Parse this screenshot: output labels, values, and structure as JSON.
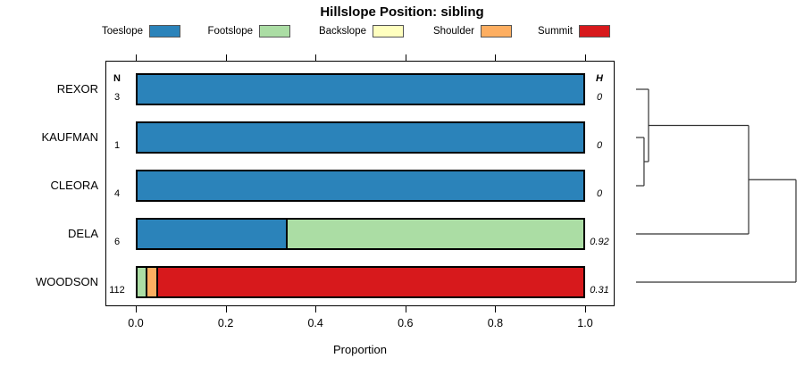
{
  "title": "Hillslope Position: sibling",
  "xlabel": "Proportion",
  "columns": {
    "n_header": "N",
    "h_header": "H"
  },
  "chart_data": {
    "type": "bar",
    "orientation": "horizontal",
    "stacked": true,
    "title": "Hillslope Position: sibling",
    "xlabel": "Proportion",
    "xlim": [
      0,
      1
    ],
    "x_ticks": [
      0.0,
      0.2,
      0.4,
      0.6,
      0.8,
      1.0
    ],
    "axis_mirrored_top_ticks": true,
    "categories": [
      "Toeslope",
      "Footslope",
      "Backslope",
      "Shoulder",
      "Summit"
    ],
    "palette": [
      "#2B83BA",
      "#ABDDA4",
      "#FFFFBF",
      "#FDAE61",
      "#D7191C"
    ],
    "legend_position": "top",
    "rows": [
      {
        "label": "REXOR",
        "n": "3",
        "h": "0",
        "segments": [
          {
            "category": "Toeslope",
            "value": 1.0
          }
        ]
      },
      {
        "label": "KAUFMAN",
        "n": "1",
        "h": "0",
        "segments": [
          {
            "category": "Toeslope",
            "value": 1.0
          }
        ]
      },
      {
        "label": "CLEORA",
        "n": "4",
        "h": "0",
        "segments": [
          {
            "category": "Toeslope",
            "value": 1.0
          }
        ]
      },
      {
        "label": "DELA",
        "n": "6",
        "h": "0.92",
        "segments": [
          {
            "category": "Toeslope",
            "value": 0.333
          },
          {
            "category": "Footslope",
            "value": 0.667
          }
        ]
      },
      {
        "label": "WOODSON",
        "n": "112",
        "h": "0.31",
        "segments": [
          {
            "category": "Footslope",
            "value": 0.018
          },
          {
            "category": "Shoulder",
            "value": 0.025
          },
          {
            "category": "Summit",
            "value": 0.957
          }
        ]
      }
    ],
    "dendrogram": {
      "leaf_order": [
        "REXOR",
        "KAUFMAN",
        "CLEORA",
        "DELA",
        "WOODSON"
      ],
      "merges": [
        {
          "a": -2,
          "b": -3,
          "h": 0.05
        },
        {
          "a": -1,
          "b": 1,
          "h": 0.078
        },
        {
          "a": 2,
          "b": -4,
          "h": 0.704
        },
        {
          "a": 3,
          "b": -5,
          "h": 1.0
        }
      ]
    }
  }
}
